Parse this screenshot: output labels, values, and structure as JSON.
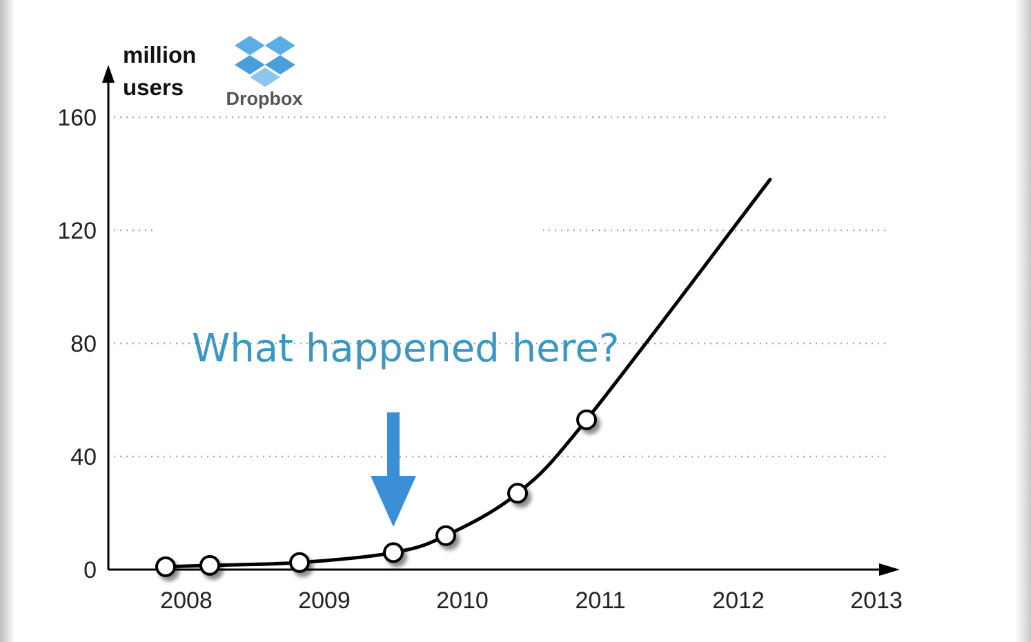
{
  "chart_data": {
    "type": "line",
    "title": "",
    "ylabel_lines": [
      "million",
      "users"
    ],
    "xlabel": "",
    "ylim": [
      0,
      160
    ],
    "xlim": [
      2007.7,
      2013.0
    ],
    "y_ticks": [
      0,
      40,
      80,
      120,
      160
    ],
    "x_tick_values": [
      2008,
      2009,
      2010,
      2011,
      2012,
      2013
    ],
    "x_tick_labels": [
      "2008",
      "2009",
      "2010",
      "2011",
      "2012",
      "2013"
    ],
    "grid": "dotted horizontal",
    "series": [
      {
        "points": [
          {
            "x": 2007.85,
            "y": 1
          },
          {
            "x": 2008.17,
            "y": 1.5
          },
          {
            "x": 2008.82,
            "y": 2.5
          },
          {
            "x": 2009.5,
            "y": 6
          },
          {
            "x": 2009.88,
            "y": 12
          },
          {
            "x": 2010.4,
            "y": 27
          },
          {
            "x": 2010.9,
            "y": 53
          }
        ],
        "trend_end": {
          "x": 2012.23,
          "y": 138
        }
      }
    ],
    "annotation": {
      "text": "What happened here?",
      "target_x": 2009.5
    },
    "logo": {
      "name": "dropbox-logo",
      "text": "Dropbox"
    },
    "colors": {
      "line": "#000000",
      "annotation": "#3a97c4",
      "arrow": "#3b8fd6",
      "logo": "#4fa8e0",
      "grid": "#a8a8a8"
    }
  }
}
